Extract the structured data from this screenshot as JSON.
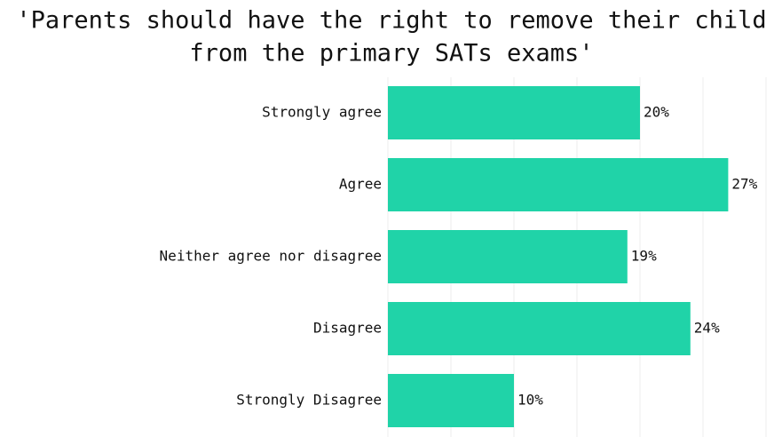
{
  "chart_data": {
    "type": "barh",
    "title": [
      "'Parents should have the right to remove their child",
      "from the primary SATs exams'"
    ],
    "categories": [
      "Strongly agree",
      "Agree",
      "Neither agree nor disagree",
      "Disagree",
      "Strongly Disagree"
    ],
    "values": [
      20,
      27,
      19,
      24,
      10
    ],
    "value_labels": [
      "20%",
      "27%",
      "19%",
      "24%",
      "10%"
    ],
    "color": "#20d3a8",
    "xlim": [
      0,
      30
    ],
    "xticks": [
      0,
      5,
      10,
      15,
      20,
      25,
      30
    ],
    "grid": true
  }
}
